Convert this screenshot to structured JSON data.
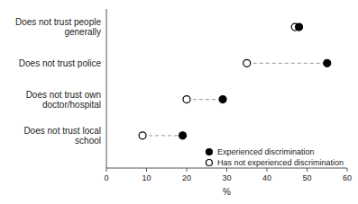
{
  "chart_data": {
    "type": "dumbbell",
    "categories": [
      "Does not trust local\nschool",
      "Does not trust own\ndoctor/hospital",
      "Does not trust police",
      "Does not trust people\ngenerally"
    ],
    "series": [
      {
        "name": "Experienced discrimination",
        "color": "black",
        "marker": "circle",
        "values": [
          19,
          29,
          55,
          48
        ]
      },
      {
        "name": "Has not experienced discrimination",
        "color": "black",
        "marker": "open-circle",
        "values": [
          9,
          20,
          35,
          47
        ]
      }
    ],
    "xlabel": "%",
    "xlim": [
      0,
      60
    ],
    "xticks": [
      0,
      10,
      20,
      30,
      40,
      50,
      60
    ],
    "line_style": "dashed",
    "color": "#aaaaaa",
    "legend": "lower right"
  }
}
